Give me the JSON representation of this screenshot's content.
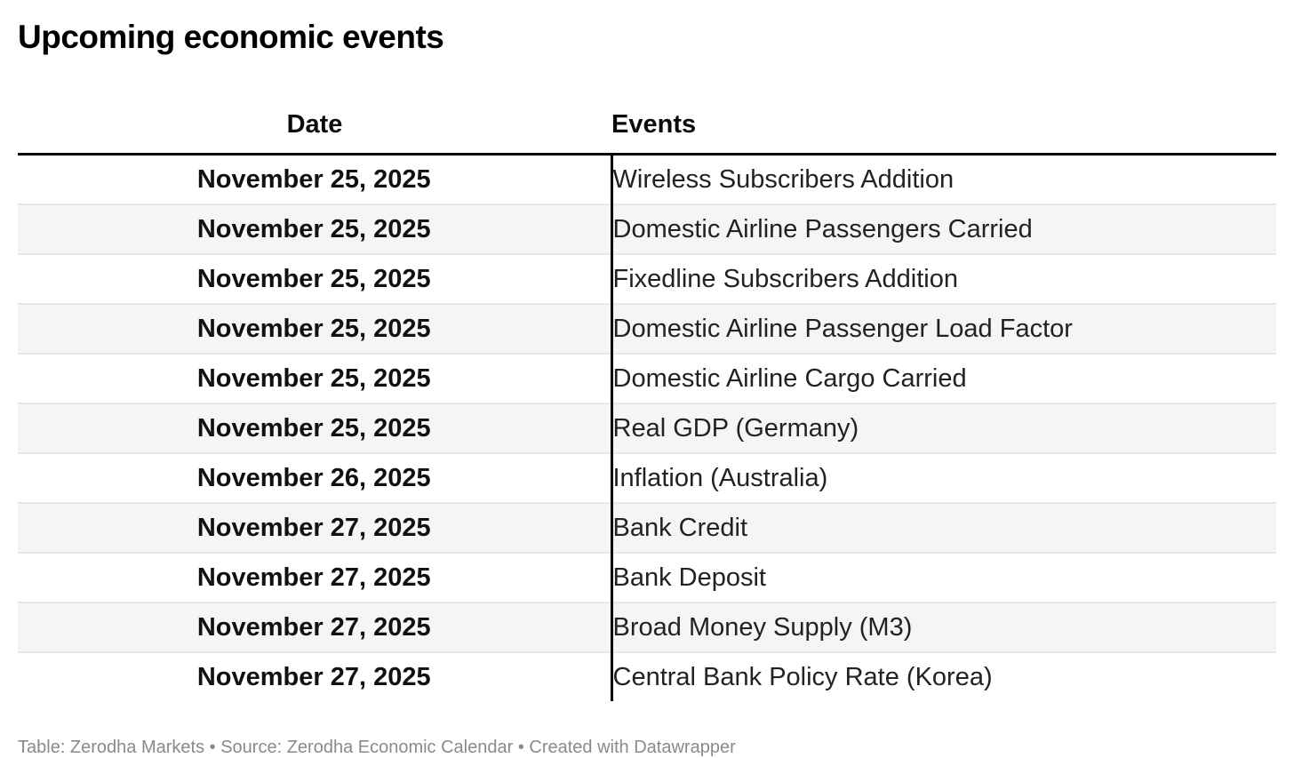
{
  "title": "Upcoming economic events",
  "table": {
    "columns": {
      "date": "Date",
      "events": "Events"
    },
    "rows": [
      {
        "date": "November 25, 2025",
        "event": "Wireless Subscribers Addition"
      },
      {
        "date": "November 25, 2025",
        "event": "Domestic Airline Passengers Carried"
      },
      {
        "date": "November 25, 2025",
        "event": "Fixedline Subscribers Addition"
      },
      {
        "date": "November 25, 2025",
        "event": "Domestic Airline Passenger Load Factor"
      },
      {
        "date": "November 25, 2025",
        "event": "Domestic Airline Cargo Carried"
      },
      {
        "date": "November 25, 2025",
        "event": "Real GDP (Germany)"
      },
      {
        "date": "November 26, 2025",
        "event": "Inflation (Australia)"
      },
      {
        "date": "November 27, 2025",
        "event": "Bank Credit"
      },
      {
        "date": "November 27, 2025",
        "event": "Bank Deposit"
      },
      {
        "date": "November 27, 2025",
        "event": "Broad Money Supply (M3)"
      },
      {
        "date": "November 27, 2025",
        "event": "Central Bank Policy Rate (Korea)"
      }
    ]
  },
  "footer": {
    "text": "Table: Zerodha Markets • Source: Zerodha Economic Calendar • Created with Datawrapper"
  },
  "colors": {
    "background": "#ffffff",
    "stripe": "#f5f5f5",
    "row_separator": "#e8e8e8",
    "header_border": "#000000",
    "column_divider": "#000000",
    "title_text": "#000000",
    "body_text": "#222222",
    "footer_text": "#8a8a8a"
  },
  "chart_data": {
    "type": "table",
    "title": "Upcoming economic events",
    "columns": [
      "Date",
      "Events"
    ],
    "rows": [
      [
        "November 25, 2025",
        "Wireless Subscribers Addition"
      ],
      [
        "November 25, 2025",
        "Domestic Airline Passengers Carried"
      ],
      [
        "November 25, 2025",
        "Fixedline Subscribers Addition"
      ],
      [
        "November 25, 2025",
        "Domestic Airline Passenger Load Factor"
      ],
      [
        "November 25, 2025",
        "Domestic Airline Cargo Carried"
      ],
      [
        "November 25, 2025",
        "Real GDP (Germany)"
      ],
      [
        "November 26, 2025",
        "Inflation (Australia)"
      ],
      [
        "November 27, 2025",
        "Bank Credit"
      ],
      [
        "November 27, 2025",
        "Bank Deposit"
      ],
      [
        "November 27, 2025",
        "Broad Money Supply (M3)"
      ],
      [
        "November 27, 2025",
        "Central Bank Policy Rate (Korea)"
      ]
    ],
    "layout_hints": {
      "zebra_striping": true,
      "date_column_bold_centered": true,
      "events_column_left_aligned": true,
      "attribution": "Table: Zerodha Markets • Source: Zerodha Economic Calendar • Created with Datawrapper"
    }
  }
}
